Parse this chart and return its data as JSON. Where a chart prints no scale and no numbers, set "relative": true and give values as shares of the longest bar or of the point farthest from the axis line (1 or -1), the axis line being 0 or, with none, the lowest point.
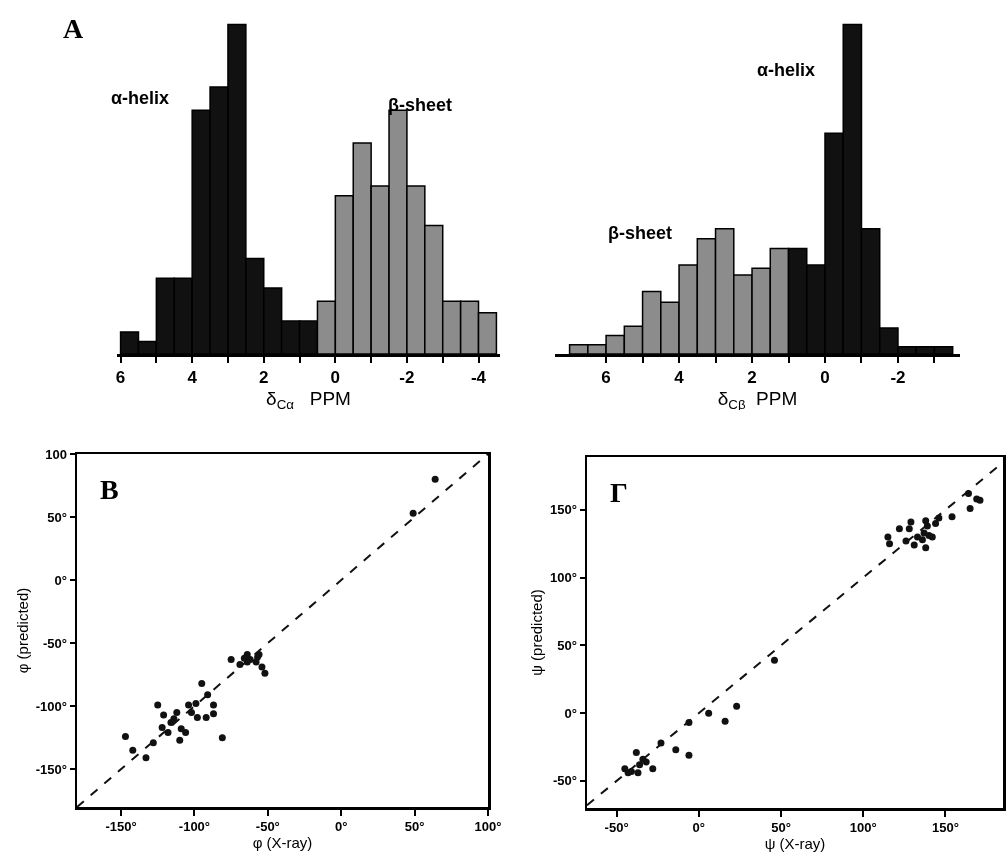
{
  "chart_data": [
    {
      "type": "bar",
      "relative": true,
      "xlabel": "δ$_{Cα}$   PPM",
      "annotations": [
        "A",
        "α-helix",
        "β-sheet"
      ],
      "xlim": [
        6.1,
        -4.6
      ],
      "xticks": [
        6,
        {
          "value": 5,
          "label": null
        },
        4,
        {
          "value": 3,
          "label": null
        },
        2,
        {
          "value": 1,
          "label": null
        },
        0,
        {
          "value": -1,
          "label": null
        },
        -2,
        {
          "value": -3,
          "label": null
        },
        -4
      ],
      "x": [
        5.75,
        5.25,
        4.75,
        4.25,
        3.75,
        3.25,
        2.75,
        2.25,
        1.75,
        1.25,
        0.75,
        0.25,
        -0.25,
        -0.75,
        -1.25,
        -1.75,
        -2.25,
        -2.75,
        -3.25,
        -3.75,
        -4.25
      ],
      "values": [
        0.067,
        0.038,
        0.23,
        0.23,
        0.74,
        0.81,
        1.0,
        0.29,
        0.2,
        0.1,
        0.1,
        0.16,
        0.48,
        0.64,
        0.51,
        0.74,
        0.51,
        0.39,
        0.16,
        0.16,
        0.125
      ],
      "colors": [
        "#111111",
        "#111111",
        "#111111",
        "#111111",
        "#111111",
        "#111111",
        "#111111",
        "#111111",
        "#111111",
        "#111111",
        "#111111",
        "#8c8c8c",
        "#8c8c8c",
        "#8c8c8c",
        "#8c8c8c",
        "#8c8c8c",
        "#8c8c8c",
        "#8c8c8c",
        "#8c8c8c",
        "#8c8c8c",
        "#8c8c8c"
      ]
    },
    {
      "type": "bar",
      "relative": true,
      "xlabel": "δ$_{Cβ}$  PPM",
      "annotations": [
        "α-helix",
        "β-sheet"
      ],
      "xlim": [
        7.4,
        -3.7
      ],
      "xticks": [
        6,
        {
          "value": 5,
          "label": null
        },
        4,
        {
          "value": 3,
          "label": null
        },
        2,
        {
          "value": 1,
          "label": null
        },
        0,
        {
          "value": -1,
          "label": null
        },
        -2,
        {
          "value": -3,
          "label": null
        }
      ],
      "x": [
        6.75,
        6.25,
        5.75,
        5.25,
        4.75,
        4.25,
        3.75,
        3.25,
        2.75,
        2.25,
        1.75,
        1.25,
        0.75,
        0.25,
        -0.25,
        -0.75,
        -1.25,
        -1.75,
        -2.25,
        -2.75,
        -3.25
      ],
      "values": [
        0.028,
        0.028,
        0.056,
        0.084,
        0.19,
        0.157,
        0.27,
        0.35,
        0.38,
        0.24,
        0.26,
        0.32,
        0.32,
        0.27,
        0.67,
        1.0,
        0.38,
        0.079,
        0.022,
        0.022,
        0.022
      ],
      "colors": [
        "#8c8c8c",
        "#8c8c8c",
        "#8c8c8c",
        "#8c8c8c",
        "#8c8c8c",
        "#8c8c8c",
        "#8c8c8c",
        "#8c8c8c",
        "#8c8c8c",
        "#8c8c8c",
        "#8c8c8c",
        "#8c8c8c",
        "#111111",
        "#111111",
        "#111111",
        "#111111",
        "#111111",
        "#111111",
        "#111111",
        "#111111",
        "#111111"
      ]
    },
    {
      "type": "scatter",
      "xlabel": "φ (X-ray)",
      "ylabel": "φ (predicted)",
      "annotations": [
        "B"
      ],
      "marker": "circle",
      "xlim": [
        -180,
        100
      ],
      "ylim": [
        -180,
        100
      ],
      "xticks": [
        {
          "value": -150,
          "label": "-150°"
        },
        {
          "value": -100,
          "label": "-100°"
        },
        {
          "value": -50,
          "label": "-50°"
        },
        {
          "value": 0,
          "label": "0°"
        },
        {
          "value": 50,
          "label": "50°"
        },
        {
          "value": 100,
          "label": "100°"
        }
      ],
      "yticks": [
        100,
        {
          "value": 50,
          "label": "50°"
        },
        {
          "value": 0,
          "label": "0°"
        },
        {
          "value": -50,
          "label": "-50°"
        },
        {
          "value": -100,
          "label": "-100°"
        },
        {
          "value": -150,
          "label": "-150°"
        }
      ],
      "series": [
        {
          "color": "#111111",
          "x": [
            64,
            49,
            -64,
            -56,
            -52,
            -54,
            -57,
            -58,
            -62,
            -64,
            -66,
            -69,
            -75,
            -95,
            -91,
            -99,
            -104,
            -125,
            -121,
            -112,
            -102,
            -98,
            -92,
            -87,
            -87,
            -122,
            -118,
            -116,
            -109,
            -106,
            -110,
            -81,
            -147,
            -142,
            -133,
            -128,
            -114
          ],
          "values": [
            80,
            53,
            -65,
            -59,
            -74,
            -69,
            -61,
            -65,
            -63,
            -59,
            -62,
            -67,
            -63,
            -82,
            -91,
            -98,
            -99,
            -99,
            -107,
            -105,
            -105,
            -109,
            -109,
            -106,
            -99,
            -117,
            -121,
            -113,
            -118,
            -121,
            -127,
            -125,
            -124,
            -135,
            -141,
            -129,
            -110
          ]
        },
        {
          "type": "line",
          "line_style": "dashed",
          "marker": "none",
          "color": "#111111",
          "x": [
            -180,
            100
          ],
          "values": [
            -180,
            100
          ]
        }
      ]
    },
    {
      "type": "scatter",
      "xlabel": "ψ (X-ray)",
      "ylabel": "ψ (predicted)",
      "annotations": [
        "Γ"
      ],
      "marker": "circle",
      "xlim": [
        -68,
        185
      ],
      "ylim": [
        -70,
        189
      ],
      "xticks": [
        {
          "value": -50,
          "label": "-50°"
        },
        {
          "value": 0,
          "label": "0°"
        },
        {
          "value": 50,
          "label": "50°"
        },
        {
          "value": 100,
          "label": "100°"
        },
        {
          "value": 150,
          "label": "150°"
        }
      ],
      "yticks": [
        {
          "value": 150,
          "label": "150°"
        },
        {
          "value": 100,
          "label": "100°"
        },
        {
          "value": 50,
          "label": "50°"
        },
        {
          "value": 0,
          "label": "0°"
        },
        {
          "value": -50,
          "label": "-50°"
        }
      ],
      "series": [
        {
          "color": "#111111",
          "x": [
            164,
            169,
            171,
            165,
            154,
            146,
            115,
            116,
            122,
            128,
            129,
            126,
            131,
            133,
            138,
            139,
            137,
            140,
            136,
            138,
            142,
            144,
            46,
            23,
            6,
            16,
            -6,
            -14,
            -6,
            -23,
            -28,
            -38,
            -32,
            -45,
            -41,
            -37,
            -36,
            -34,
            -43
          ],
          "values": [
            162,
            158,
            157,
            151,
            145,
            144,
            130,
            125,
            136,
            136,
            141,
            127,
            124,
            130,
            142,
            138,
            133,
            131,
            128,
            122,
            130,
            140,
            39,
            5,
            0,
            -6,
            -7,
            -27,
            -31,
            -22,
            -41,
            -29,
            -36,
            -41,
            -43,
            -44,
            -38,
            -34,
            -44
          ]
        },
        {
          "type": "line",
          "line_style": "dashed",
          "marker": "none",
          "color": "#111111",
          "x": [
            -68,
            185
          ],
          "values": [
            -68,
            185
          ]
        }
      ]
    }
  ]
}
